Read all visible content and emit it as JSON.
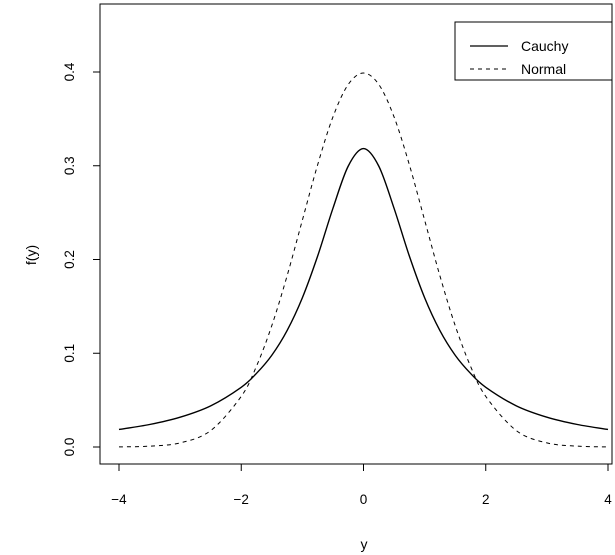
{
  "chart_data": {
    "type": "line",
    "title": "",
    "xlabel": "y",
    "ylabel": "f(y)",
    "xlim": [
      -4,
      4
    ],
    "ylim": [
      0,
      0.4
    ],
    "xticks": [
      -4,
      -2,
      0,
      2,
      4
    ],
    "xtick_labels": [
      "−4",
      "−2",
      "0",
      "2",
      "4"
    ],
    "yticks": [
      0.0,
      0.1,
      0.2,
      0.3,
      0.4
    ],
    "ytick_labels": [
      "0.0",
      "0.1",
      "0.2",
      "0.3",
      "0.4"
    ],
    "grid": false,
    "legend_position": "top-right",
    "x": [
      -4,
      -3.5,
      -3,
      -2.5,
      -2,
      -1.75,
      -1.5,
      -1.25,
      -1,
      -0.75,
      -0.5,
      -0.25,
      0,
      0.25,
      0.5,
      0.75,
      1,
      1.25,
      1.5,
      1.75,
      2,
      2.5,
      3,
      3.5,
      4
    ],
    "series": [
      {
        "name": "Cauchy",
        "style": "solid",
        "color": "#000000",
        "values": [
          0.0187,
          0.024,
          0.0318,
          0.0439,
          0.0637,
          0.0786,
          0.0979,
          0.1242,
          0.1592,
          0.2037,
          0.2546,
          0.2996,
          0.3183,
          0.2996,
          0.2546,
          0.2037,
          0.1592,
          0.1242,
          0.0979,
          0.0786,
          0.0637,
          0.0439,
          0.0318,
          0.024,
          0.0187
        ]
      },
      {
        "name": "Normal",
        "style": "dashed",
        "color": "#000000",
        "values": [
          0.0001,
          0.0009,
          0.0044,
          0.0175,
          0.054,
          0.0863,
          0.1295,
          0.1826,
          0.242,
          0.3011,
          0.3521,
          0.3867,
          0.3989,
          0.3867,
          0.3521,
          0.3011,
          0.242,
          0.1826,
          0.1295,
          0.0863,
          0.054,
          0.0175,
          0.0044,
          0.0009,
          0.0001
        ]
      }
    ]
  }
}
